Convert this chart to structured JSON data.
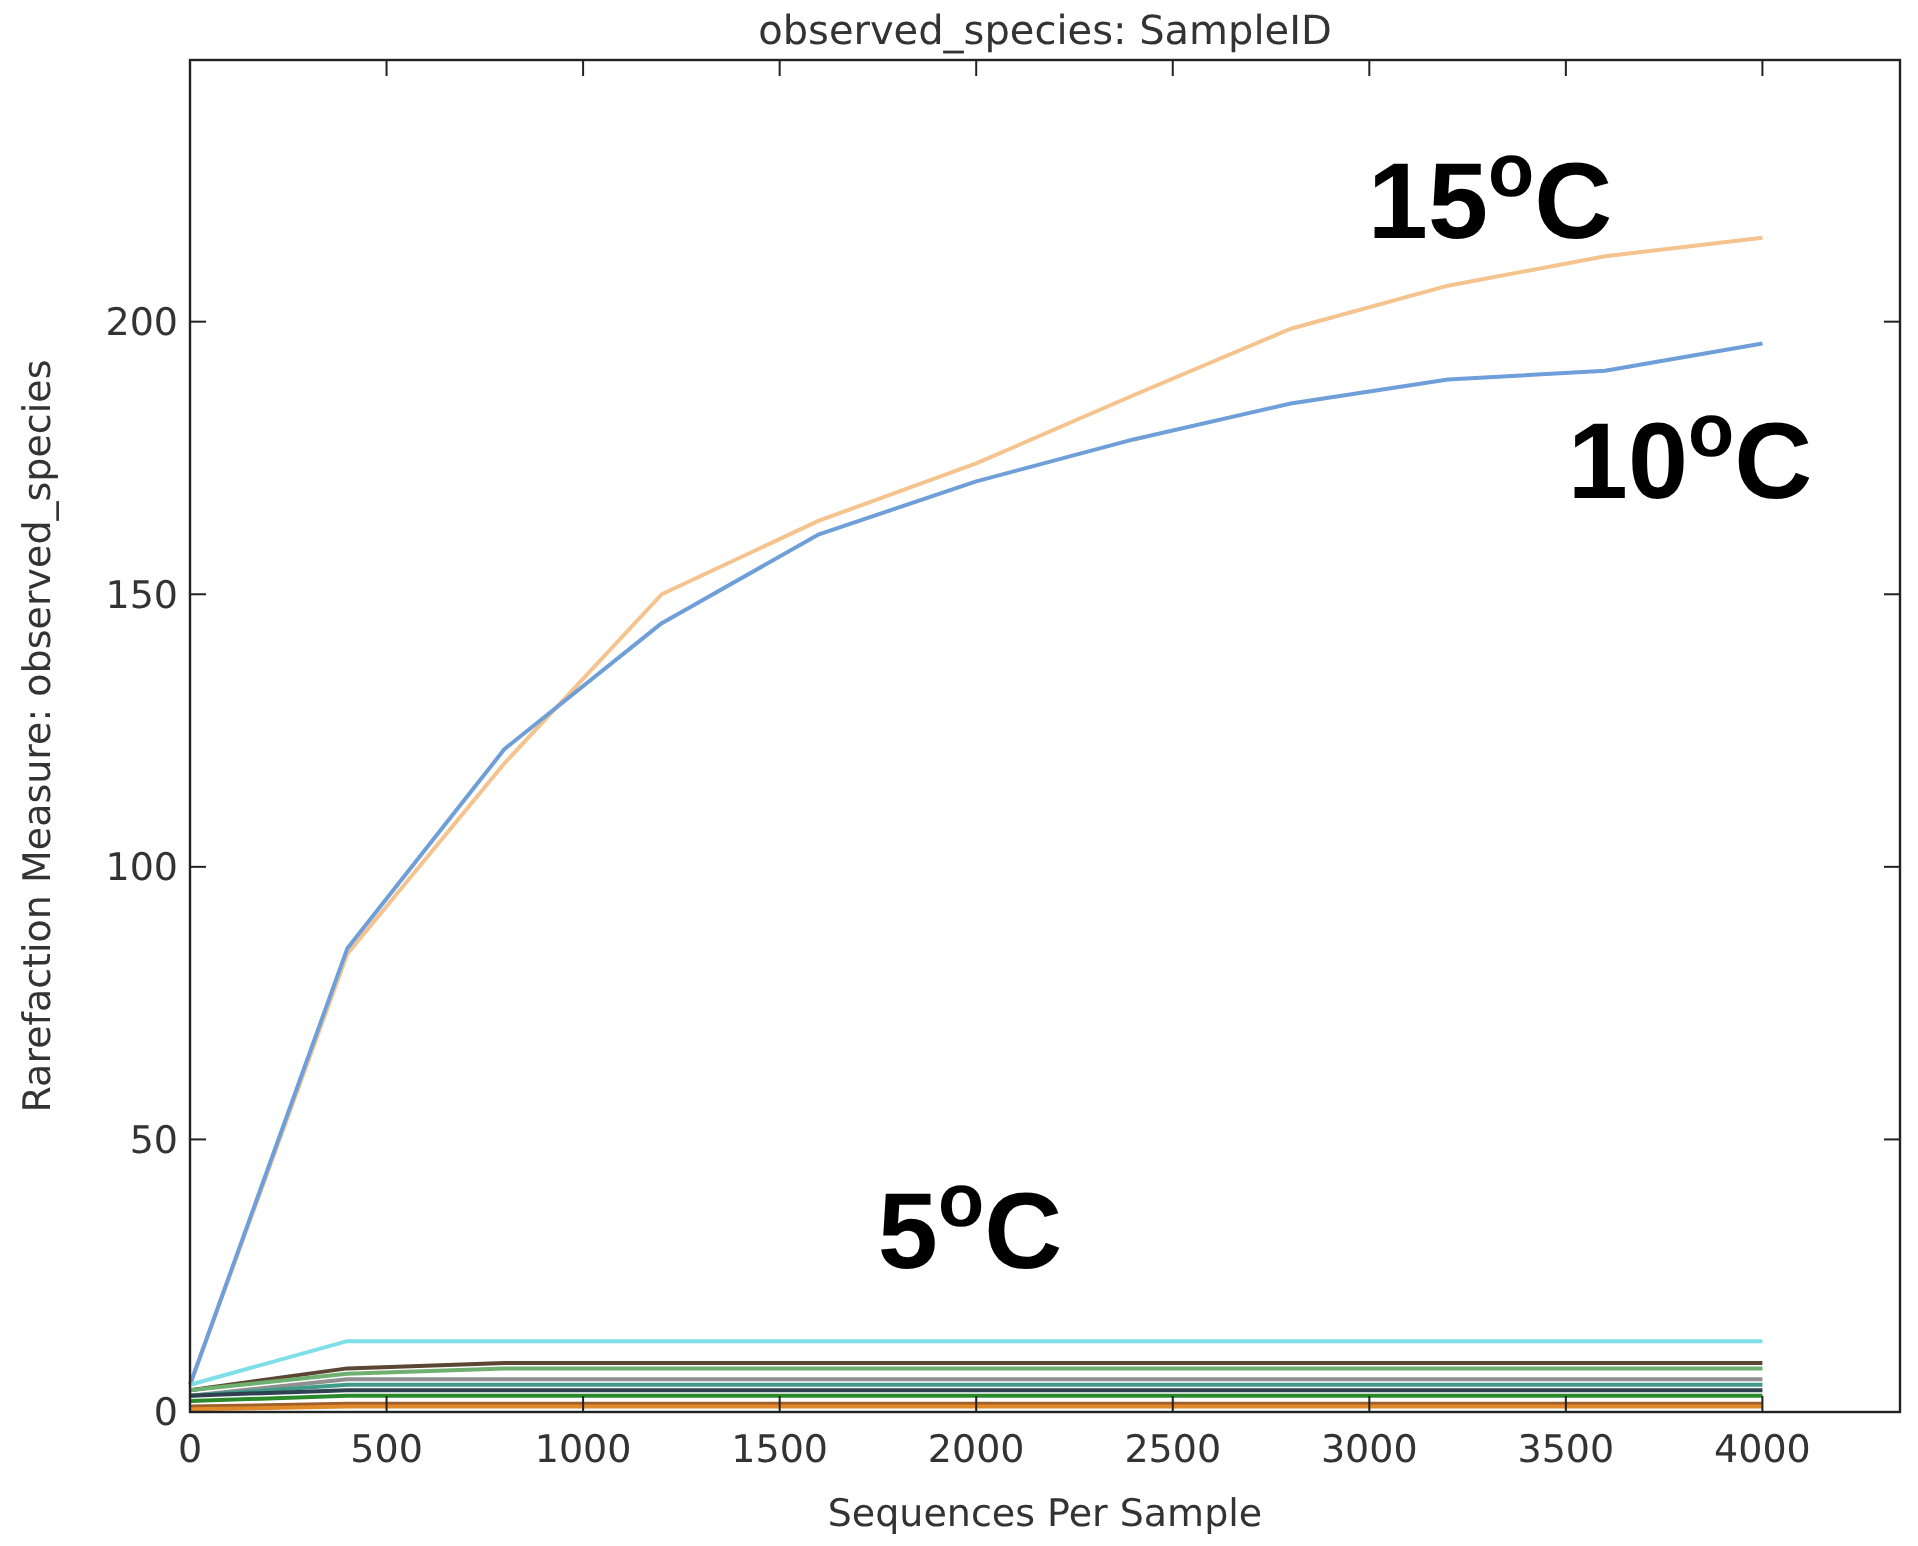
{
  "chart_data": {
    "type": "line",
    "title": "observed_species: SampleID",
    "xlabel": "Sequences Per Sample",
    "ylabel": "Rarefaction Measure: observed_species",
    "x": [
      0,
      400,
      800,
      1200,
      1600,
      2000,
      2400,
      2800,
      3200,
      3600,
      4000
    ],
    "xlim": [
      0,
      4350
    ],
    "xticks": [
      0,
      500,
      1000,
      1500,
      2000,
      2500,
      3000,
      3500,
      4000
    ],
    "ylim": [
      0,
      248
    ],
    "yticks": [
      0,
      50,
      100,
      150,
      200
    ],
    "grid": false,
    "marker": "none",
    "line_style": "solid",
    "series": [
      {
        "color": "#f5c38e",
        "values": [
          5,
          84,
          119,
          150,
          163.5,
          174,
          186.5,
          198.7,
          206.6,
          212,
          215.4
        ]
      },
      {
        "color": "#6f9fd8",
        "values": [
          5,
          85,
          121.6,
          144.7,
          161,
          170.7,
          178.4,
          185,
          189.4,
          191,
          196
        ]
      },
      {
        "color": "#7fdfe8",
        "values": [
          5,
          13,
          13,
          13,
          13,
          13,
          13,
          13,
          13,
          13,
          13
        ]
      },
      {
        "color": "#5a4632",
        "values": [
          4,
          8,
          9,
          9,
          9,
          9,
          9,
          9,
          9,
          9,
          9
        ]
      },
      {
        "color": "#6fb070",
        "values": [
          4,
          7,
          8,
          8,
          8,
          8,
          8,
          8,
          8,
          8,
          8
        ]
      },
      {
        "color": "#909090",
        "values": [
          3,
          6,
          6,
          6,
          6,
          6,
          6,
          6,
          6,
          6,
          6
        ]
      },
      {
        "color": "#3f9a8a",
        "values": [
          3,
          5,
          5,
          5,
          5,
          5,
          5,
          5,
          5,
          5,
          5
        ]
      },
      {
        "color": "#2f4050",
        "values": [
          3,
          4,
          4,
          4,
          4,
          4,
          4,
          4,
          4,
          4,
          4
        ]
      },
      {
        "color": "#2a8a2a",
        "values": [
          2,
          3,
          3,
          3,
          3,
          3,
          3,
          3,
          3,
          3,
          3
        ]
      },
      {
        "color": "#a0602a",
        "values": [
          1,
          1.5,
          1.5,
          1.5,
          1.5,
          1.5,
          1.5,
          1.5,
          1.5,
          1.5,
          1.5
        ]
      },
      {
        "color": "#e08a2a",
        "values": [
          0.5,
          1,
          1,
          1,
          1,
          1,
          1,
          1,
          1,
          1,
          1
        ]
      }
    ],
    "annotations": [
      "15$^{o}$C",
      "10$^{o}$C",
      "5$^{o}$C"
    ]
  }
}
